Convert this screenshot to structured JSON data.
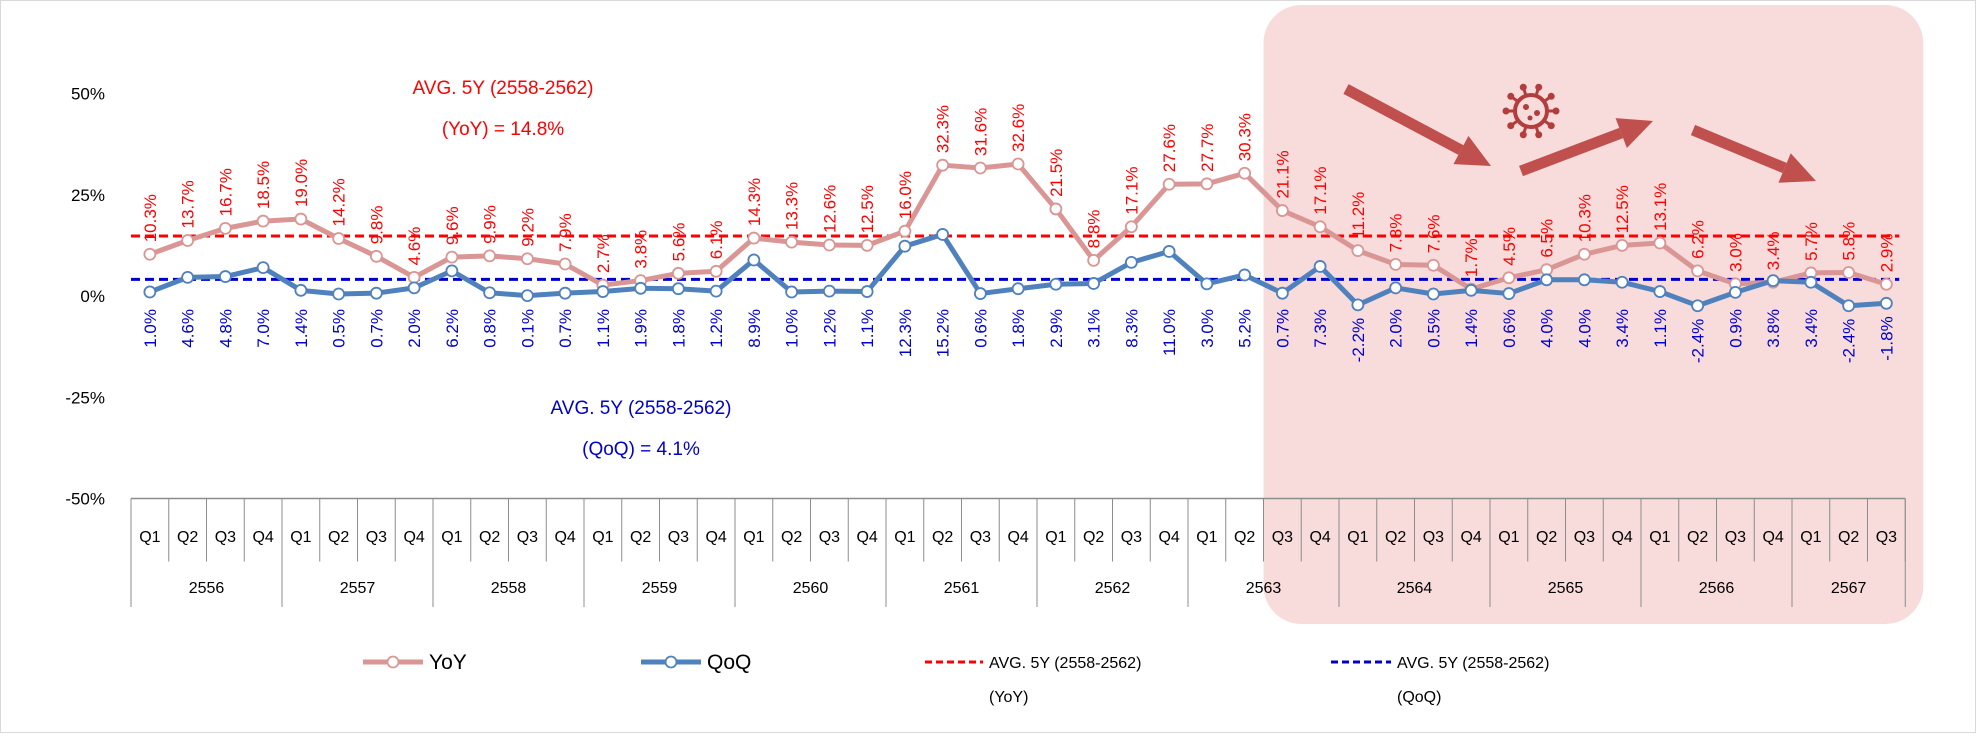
{
  "chart_data": {
    "type": "line",
    "y_axis": {
      "ticks": [
        "50%",
        "25%",
        "0%",
        "-25%",
        "-50%"
      ],
      "tick_values": [
        50,
        25,
        0,
        -25,
        -50
      ],
      "ylim": [
        -50,
        50
      ]
    },
    "quarters": [
      "Q1",
      "Q2",
      "Q3",
      "Q4",
      "Q1",
      "Q2",
      "Q3",
      "Q4",
      "Q1",
      "Q2",
      "Q3",
      "Q4",
      "Q1",
      "Q2",
      "Q3",
      "Q4",
      "Q1",
      "Q2",
      "Q3",
      "Q4",
      "Q1",
      "Q2",
      "Q3",
      "Q4",
      "Q1",
      "Q2",
      "Q3",
      "Q4",
      "Q1",
      "Q2",
      "Q3",
      "Q4",
      "Q1",
      "Q2",
      "Q3",
      "Q4",
      "Q1",
      "Q2",
      "Q3",
      "Q4",
      "Q1",
      "Q2",
      "Q3",
      "Q4",
      "Q1",
      "Q2",
      "Q3"
    ],
    "years": [
      {
        "label": "2556",
        "quarters": 4
      },
      {
        "label": "2557",
        "quarters": 4
      },
      {
        "label": "2558",
        "quarters": 4
      },
      {
        "label": "2559",
        "quarters": 4
      },
      {
        "label": "2560",
        "quarters": 4
      },
      {
        "label": "2561",
        "quarters": 4
      },
      {
        "label": "2562",
        "quarters": 4
      },
      {
        "label": "2563",
        "quarters": 4
      },
      {
        "label": "2564",
        "quarters": 4
      },
      {
        "label": "2565",
        "quarters": 4
      },
      {
        "label": "2566",
        "quarters": 4
      },
      {
        "label": "2567",
        "quarters": 3
      }
    ],
    "series": [
      {
        "name": "YoY",
        "color": "#d99694",
        "values": [
          10.3,
          13.7,
          16.7,
          18.5,
          19.0,
          14.2,
          9.8,
          4.6,
          9.6,
          9.9,
          9.2,
          7.9,
          2.7,
          3.8,
          5.6,
          6.1,
          14.3,
          13.3,
          12.6,
          12.5,
          16.0,
          32.3,
          31.6,
          32.6,
          21.5,
          8.8,
          17.1,
          27.6,
          27.7,
          30.3,
          21.1,
          17.1,
          11.2,
          7.8,
          7.6,
          1.7,
          4.5,
          6.5,
          10.3,
          12.5,
          13.1,
          6.2,
          3.0,
          3.4,
          5.7,
          5.8,
          2.9
        ],
        "labels": [
          "10.3%",
          "13.7%",
          "16.7%",
          "18.5%",
          "19.0%",
          "14.2%",
          "9.8%",
          "4.6%",
          "9.6%",
          "9.9%",
          "9.2%",
          "7.9%",
          "2.7%",
          "3.8%",
          "5.6%",
          "6.1%",
          "14.3%",
          "13.3%",
          "12.6%",
          "12.5%",
          "16.0%",
          "32.3%",
          "31.6%",
          "32.6%",
          "21.5%",
          "8.8%",
          "17.1%",
          "27.6%",
          "27.7%",
          "30.3%",
          "21.1%",
          "17.1%",
          "11.2%",
          "7.8%",
          "7.6%",
          "1.7%",
          "4.5%",
          "6.5%",
          "10.3%",
          "12.5%",
          "13.1%",
          "6.2%",
          "3.0%",
          "3.4%",
          "5.7%",
          "5.8%",
          "2.9%"
        ]
      },
      {
        "name": "QoQ",
        "color": "#4f81bd",
        "values": [
          1.0,
          4.6,
          4.8,
          7.0,
          1.4,
          0.5,
          0.7,
          2.0,
          6.2,
          0.8,
          0.1,
          0.7,
          1.1,
          1.9,
          1.8,
          1.2,
          8.9,
          1.0,
          1.2,
          1.1,
          12.3,
          15.2,
          0.6,
          1.8,
          2.9,
          3.1,
          8.3,
          11.0,
          3.0,
          5.2,
          0.7,
          7.3,
          -2.2,
          2.0,
          0.5,
          1.4,
          0.6,
          4.0,
          4.0,
          3.4,
          1.1,
          -2.4,
          0.9,
          3.8,
          3.4,
          -2.4,
          -1.8
        ],
        "labels": [
          "1.0%",
          "4.6%",
          "4.8%",
          "7.0%",
          "1.4%",
          "0.5%",
          "0.7%",
          "2.0%",
          "6.2%",
          "0.8%",
          "0.1%",
          "0.7%",
          "1.1%",
          "1.9%",
          "1.8%",
          "1.2%",
          "8.9%",
          "1.0%",
          "1.2%",
          "1.1%",
          "12.3%",
          "15.2%",
          "0.6%",
          "1.8%",
          "2.9%",
          "3.1%",
          "8.3%",
          "11.0%",
          "3.0%",
          "5.2%",
          "0.7%",
          "7.3%",
          "-2.2%",
          "2.0%",
          "0.5%",
          "1.4%",
          "0.6%",
          "4.0%",
          "4.0%",
          "3.4%",
          "1.1%",
          "-2.4%",
          "0.9%",
          "3.8%",
          "3.4%",
          "-2.4%",
          "-1.8%"
        ]
      }
    ],
    "averages": [
      {
        "name_line1": "AVG. 5Y (2558-2562)",
        "name_line2": "(YoY)",
        "value": 14.8,
        "color": "#ff0000",
        "annotation_line1": "AVG. 5Y (2558-2562)",
        "annotation_line2": "(YoY) = 14.8%"
      },
      {
        "name_line1": "AVG. 5Y (2558-2562)",
        "name_line2": "(QoQ)",
        "value": 4.1,
        "color": "#0000cc",
        "annotation_line1": "AVG. 5Y (2558-2562)",
        "annotation_line2": "(QoQ) = 4.1%"
      }
    ],
    "highlight": {
      "from_index": 30,
      "to_index": 46,
      "color": "#f7dcdb",
      "icon": "virus-icon",
      "arrow_icon": "trend-arrow-icon",
      "arrow_color": "#c0504d"
    },
    "legend_position": "bottom",
    "grid": false
  }
}
